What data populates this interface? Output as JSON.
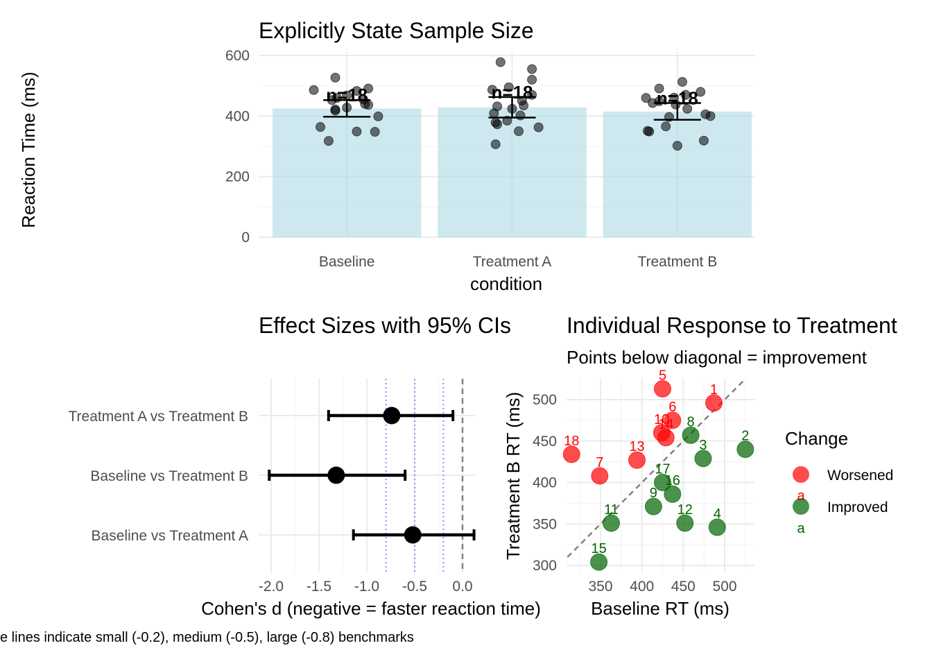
{
  "colors": {
    "bar_fill": "#add8e6",
    "worsened": "#ff0000",
    "improved": "#006400",
    "benchmark": "#8a8aff",
    "zero_line": "#808080"
  },
  "chart_data": [
    {
      "type": "bar",
      "title": "Explicitly State Sample Size",
      "xlabel": "condition",
      "ylabel": "Reaction Time (ms)",
      "ylim": [
        0,
        600
      ],
      "yticks": [
        0,
        200,
        400,
        600
      ],
      "categories": [
        "Baseline",
        "Treatment A",
        "Treatment B"
      ],
      "values": [
        425,
        429,
        415
      ],
      "error_low": [
        398,
        395,
        388
      ],
      "error_high": [
        453,
        463,
        443
      ],
      "annotations": [
        "n=18",
        "n=18",
        "n=18"
      ],
      "jitter_points": [
        [
          527,
          491,
          486,
          483,
          468,
          460,
          455,
          453,
          440,
          437,
          428,
          422,
          418,
          399,
          364,
          349,
          348,
          318
        ],
        [
          578,
          555,
          520,
          495,
          487,
          470,
          451,
          435,
          432,
          424,
          409,
          402,
          385,
          379,
          373,
          363,
          350,
          307
        ],
        [
          513,
          491,
          480,
          470,
          461,
          460,
          449,
          443,
          438,
          424,
          406,
          400,
          397,
          366,
          351,
          349,
          319,
          302
        ]
      ],
      "jitter_offsets": [
        [
          -0.07,
          0.13,
          -0.2,
          0.06,
          0.0,
          -0.06,
          0.1,
          -0.09,
          0.11,
          0.13,
          0.0,
          -0.07,
          -0.07,
          0.19,
          -0.16,
          0.06,
          0.17,
          -0.11
        ],
        [
          -0.07,
          0.12,
          0.12,
          -0.02,
          -0.12,
          0.12,
          0.06,
          0.07,
          -0.09,
          0.0,
          -0.11,
          0.05,
          -0.03,
          -0.1,
          -0.09,
          0.16,
          0.04,
          -0.1
        ],
        [
          0.03,
          -0.11,
          0.14,
          0.05,
          -0.02,
          -0.19,
          -0.11,
          -0.15,
          -0.01,
          0.06,
          0.17,
          0.2,
          -0.05,
          -0.07,
          -0.18,
          -0.17,
          0.16,
          0.0
        ]
      ]
    },
    {
      "type": "forest",
      "title": "Effect Sizes with 95% CIs",
      "xlabel": "Cohen's d (negative = faster reaction time)",
      "xlim": [
        -2.0,
        0.1
      ],
      "xticks": [
        -2.0,
        -1.5,
        -1.0,
        -0.5,
        0.0
      ],
      "xtick_labels": [
        "-2.0",
        "-1.5",
        "-1.0",
        "-0.5",
        "0.0"
      ],
      "categories": [
        "Treatment A vs Treatment B",
        "Baseline vs Treatment B",
        "Baseline vs Treatment A"
      ],
      "values": [
        -0.74,
        -1.32,
        -0.52
      ],
      "ci_low": [
        -1.4,
        -2.02,
        -1.14
      ],
      "ci_high": [
        -0.1,
        -0.6,
        0.12
      ],
      "reference_lines": [
        0.0,
        -0.2,
        -0.5,
        -0.8
      ]
    },
    {
      "type": "scatter",
      "title": "Individual Response to Treatment",
      "subtitle": "Points below diagonal = improvement",
      "xlabel": "Baseline RT (ms)",
      "ylabel": "Treatment B RT (ms)",
      "xlim": [
        310,
        530
      ],
      "ylim": [
        300,
        522
      ],
      "xticks": [
        350,
        400,
        450,
        500
      ],
      "yticks": [
        300,
        350,
        400,
        450,
        500
      ],
      "legend": {
        "title": "Change",
        "position": "right",
        "entries": [
          "Worsened",
          "Improved"
        ],
        "key_glyph_text": "a"
      },
      "points": [
        {
          "id": "1",
          "x": 487,
          "y": 496,
          "group": "Worsened"
        },
        {
          "id": "2",
          "x": 525,
          "y": 440,
          "group": "Improved"
        },
        {
          "id": "3",
          "x": 474,
          "y": 429,
          "group": "Improved"
        },
        {
          "id": "4",
          "x": 491,
          "y": 346,
          "group": "Improved"
        },
        {
          "id": "5",
          "x": 425,
          "y": 513,
          "group": "Worsened"
        },
        {
          "id": "6",
          "x": 437,
          "y": 475,
          "group": "Worsened"
        },
        {
          "id": "7",
          "x": 349,
          "y": 408,
          "group": "Worsened"
        },
        {
          "id": "8",
          "x": 459,
          "y": 457,
          "group": "Improved"
        },
        {
          "id": "9",
          "x": 414,
          "y": 371,
          "group": "Improved"
        },
        {
          "id": "10",
          "x": 424,
          "y": 460,
          "group": "Worsened"
        },
        {
          "id": "11",
          "x": 363,
          "y": 351,
          "group": "Improved"
        },
        {
          "id": "12",
          "x": 452,
          "y": 351,
          "group": "Improved"
        },
        {
          "id": "13",
          "x": 394,
          "y": 427,
          "group": "Worsened"
        },
        {
          "id": "14",
          "x": 429,
          "y": 454,
          "group": "Worsened"
        },
        {
          "id": "15",
          "x": 348,
          "y": 304,
          "group": "Improved"
        },
        {
          "id": "16",
          "x": 437,
          "y": 386,
          "group": "Improved"
        },
        {
          "id": "17",
          "x": 425,
          "y": 400,
          "group": "Improved"
        },
        {
          "id": "18",
          "x": 315,
          "y": 434,
          "group": "Worsened"
        }
      ]
    }
  ],
  "caption": "e lines indicate small (-0.2), medium (-0.5), large (-0.8) benchmarks"
}
